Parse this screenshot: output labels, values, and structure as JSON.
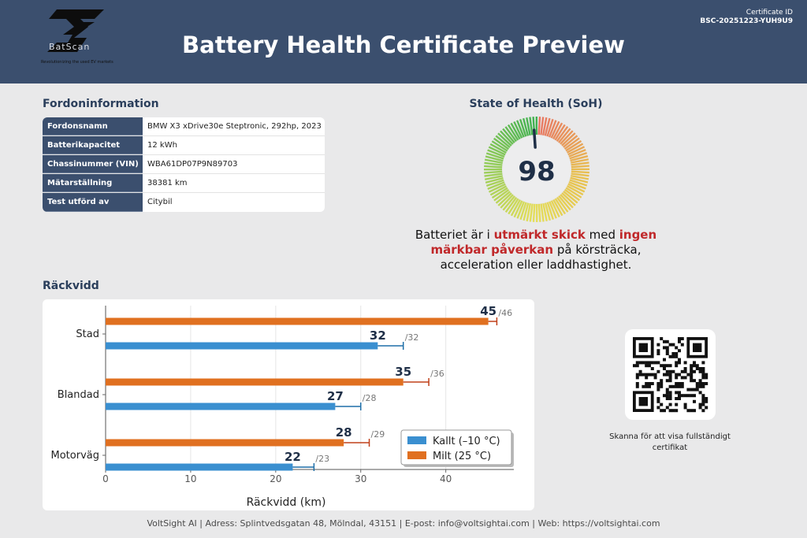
{
  "header": {
    "title": "Battery Health Certificate Preview",
    "cert_label": "Certificate ID",
    "cert_id": "BSC-20251223-YUH9U9",
    "logo_text": "BatScan",
    "logo_tagline": "Revolutionizing the used EV markets"
  },
  "vehicle": {
    "title": "Fordoninformation",
    "rows": [
      {
        "key": "Fordonsnamn",
        "value": "BMW X3 xDrive30e Steptronic, 292hp, 2023"
      },
      {
        "key": "Batterikapacitet",
        "value": "12 kWh"
      },
      {
        "key": "Chassinummer (VIN)",
        "value": "WBA61DP07P9N89703"
      },
      {
        "key": "Mätarställning",
        "value": "38381 km"
      },
      {
        "key": "Test utförd av",
        "value": "Citybil"
      }
    ]
  },
  "soh": {
    "title": "State of Health (SoH)",
    "value": 98,
    "text_1": "Batteriet är i ",
    "text_hl_1": "utmärkt skick",
    "text_2": " med ",
    "text_hl_2": "ingen märkbar påverkan",
    "text_3": " på körsträcka, acceleration eller laddhastighet."
  },
  "range": {
    "title": "Räckvidd"
  },
  "chart_data": {
    "type": "bar",
    "orientation": "horizontal",
    "categories": [
      "Stad",
      "Blandad",
      "Motorväg"
    ],
    "series": [
      {
        "name": "Milt (25 °C)",
        "values": [
          45,
          35,
          28
        ],
        "max_labels": [
          "/46",
          "/36",
          "/29"
        ],
        "error_max": [
          46,
          38,
          31
        ],
        "color": "#e07020"
      },
      {
        "name": "Kallt (–10 °C)",
        "values": [
          32,
          27,
          22
        ],
        "max_labels": [
          "/32",
          "/28",
          "/23"
        ],
        "error_max": [
          35,
          30,
          24.5
        ],
        "color": "#3a8fd0"
      }
    ],
    "xlabel": "Räckvidd (km)",
    "xlim": [
      0,
      48
    ],
    "xticks": [
      "0",
      "10",
      "20",
      "30",
      "40"
    ],
    "grid": true,
    "legend": "bottom-right"
  },
  "qr": {
    "caption": "Skanna för att visa fullständigt certifikat"
  },
  "footer": {
    "text": "VoltSight AI | Adress: Splintvedsgatan 48, Mölndal, 43151 | E-post: info@voltsightai.com | Web: https://voltsightai.com"
  }
}
